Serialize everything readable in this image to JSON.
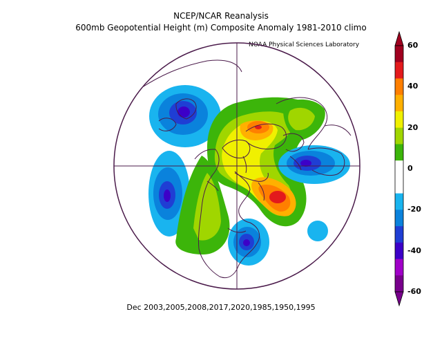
{
  "header": {
    "title": "NCEP/NCAR Reanalysis",
    "subtitle": "600mb Geopotential Height (m) Composite Anomaly 1981-2010 climo",
    "credit": "NOAA Physical Sciences Laboratory"
  },
  "footer": {
    "caption": "Dec 2003,2005,2008,2017,2020,1985,1950,1995"
  },
  "colorbar": {
    "labels": [
      "60",
      "40",
      "20",
      "0",
      "-20",
      "-40",
      "-60"
    ],
    "colors": [
      "#a0001f",
      "#e31a1c",
      "#ff7f00",
      "#ffb000",
      "#f0f000",
      "#a0d600",
      "#3cb50a",
      "#ffffff",
      "#ffffff",
      "#19b4ef",
      "#0a82dc",
      "#1f3ed4",
      "#3c00c8",
      "#a000c8",
      "#78008c"
    ]
  },
  "map_data": {
    "projection": "north-polar-stereographic",
    "anomaly_centers": [
      {
        "region": "Bering Sea",
        "sign": "negative",
        "value": -40
      },
      {
        "region": "North Pacific",
        "sign": "negative",
        "value": -40
      },
      {
        "region": "Greenland / North Atlantic",
        "sign": "positive",
        "value": 50
      },
      {
        "region": "Northern Siberia / Arctic",
        "sign": "positive",
        "value": 40
      },
      {
        "region": "Western Russia",
        "sign": "negative",
        "value": -40
      },
      {
        "region": "Southeastern United States",
        "sign": "negative",
        "value": -40
      },
      {
        "region": "Western North America",
        "sign": "positive",
        "value": 20
      }
    ]
  }
}
